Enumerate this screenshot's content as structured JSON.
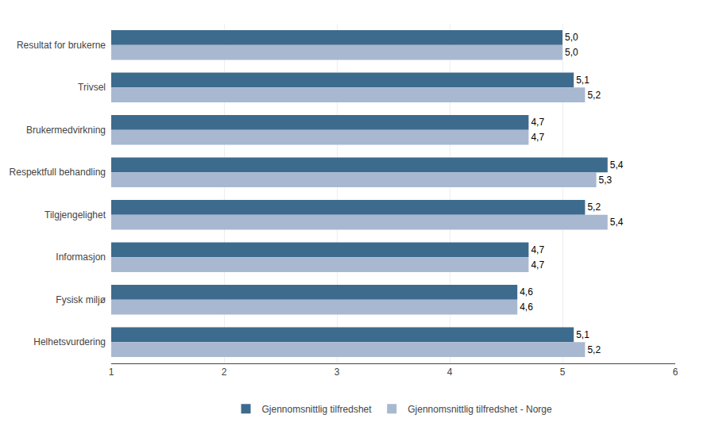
{
  "chart_data": {
    "type": "bar",
    "orientation": "horizontal",
    "categories": [
      "Resultat for brukerne",
      "Trivsel",
      "Brukermedvirkning",
      "Respektfull behandling",
      "Tilgjengelighet",
      "Informasjon",
      "Fysisk miljø",
      "Helhetsvurdering"
    ],
    "series": [
      {
        "name": "Gjennomsnittlig tilfredshet",
        "color": "#3D6B8E",
        "values": [
          5.0,
          5.1,
          4.7,
          5.4,
          5.2,
          4.7,
          4.6,
          5.1
        ],
        "value_labels": [
          "5,0",
          "5,1",
          "4,7",
          "5,4",
          "5,2",
          "4,7",
          "4,6",
          "5,1"
        ]
      },
      {
        "name": "Gjennomsnittlig tilfredshet - Norge",
        "color": "#A8B8D0",
        "values": [
          5.0,
          5.2,
          4.7,
          5.3,
          5.4,
          4.7,
          4.6,
          5.2
        ],
        "value_labels": [
          "5,0",
          "5,2",
          "4,7",
          "5,3",
          "5,4",
          "4,7",
          "4,6",
          "5,2"
        ]
      }
    ],
    "xlim": [
      1,
      6
    ],
    "xticks": [
      1,
      2,
      3,
      4,
      5,
      6
    ],
    "grid": true,
    "legend": "bottom",
    "data_labels": true
  }
}
